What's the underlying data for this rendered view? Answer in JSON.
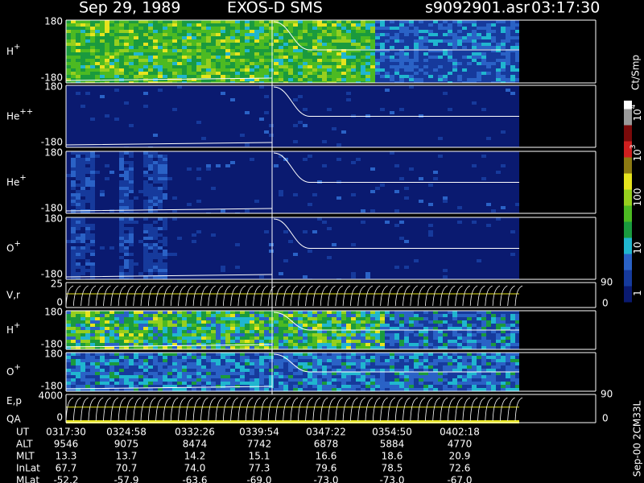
{
  "header": {
    "date": "Sep 29, 1989",
    "instrument": "EXOS-D SMS",
    "file": "s9092901.asr",
    "time": "03:17:30"
  },
  "panels": [
    {
      "label": {
        "base": "H",
        "sup": "+"
      },
      "top": "180",
      "bottom": "-180"
    },
    {
      "label": {
        "base": "He",
        "sup": "++"
      },
      "top": "180",
      "bottom": "-180"
    },
    {
      "label": {
        "base": "He",
        "sup": "+"
      },
      "top": "180",
      "bottom": "-180"
    },
    {
      "label": {
        "base": "O",
        "sup": "+"
      },
      "top": "180",
      "bottom": "-180"
    },
    {
      "label": {
        "base": "V,r",
        "sup": ""
      },
      "top": "25",
      "bottom": "0",
      "right_top": "90",
      "right_bottom": "0"
    },
    {
      "label": {
        "base": "H",
        "sup": "+"
      },
      "top": "180",
      "bottom": "-180"
    },
    {
      "label": {
        "base": "O",
        "sup": "+"
      },
      "top": "180",
      "bottom": "-180"
    },
    {
      "label": {
        "base": "E,p",
        "sup": ""
      },
      "label2": "QA",
      "top": "4000",
      "bottom": "0",
      "right_top": "90",
      "right_bottom": "0"
    }
  ],
  "table": {
    "rows": [
      {
        "label": "UT",
        "values": [
          "0317:30",
          "0324:58",
          "0332:26",
          "0339:54",
          "0347:22",
          "0354:50",
          "0402:18"
        ]
      },
      {
        "label": "ALT",
        "values": [
          "9546",
          "9075",
          "8474",
          "7742",
          "6878",
          "5884",
          "4770"
        ]
      },
      {
        "label": "MLT",
        "values": [
          "13.3",
          "13.7",
          "14.2",
          "15.1",
          "16.6",
          "18.6",
          "20.9"
        ]
      },
      {
        "label": "InLat",
        "values": [
          "67.7",
          "70.7",
          "74.0",
          "77.3",
          "79.6",
          "78.5",
          "72.6"
        ]
      },
      {
        "label": "MLat",
        "values": [
          "-52.2",
          "-57.9",
          "-63.6",
          "-69.0",
          "-73.0",
          "-73.0",
          "-67.0"
        ]
      }
    ]
  },
  "colorbar": {
    "unit": "Ct/Smp",
    "ticks": [
      {
        "base": "10",
        "sup": "4"
      },
      {
        "base": "10",
        "sup": "3"
      },
      {
        "base": "100",
        "sup": ""
      },
      {
        "base": "10",
        "sup": ""
      },
      {
        "base": "1",
        "sup": ""
      }
    ]
  },
  "footer": "Sep-00 2CM33L"
}
